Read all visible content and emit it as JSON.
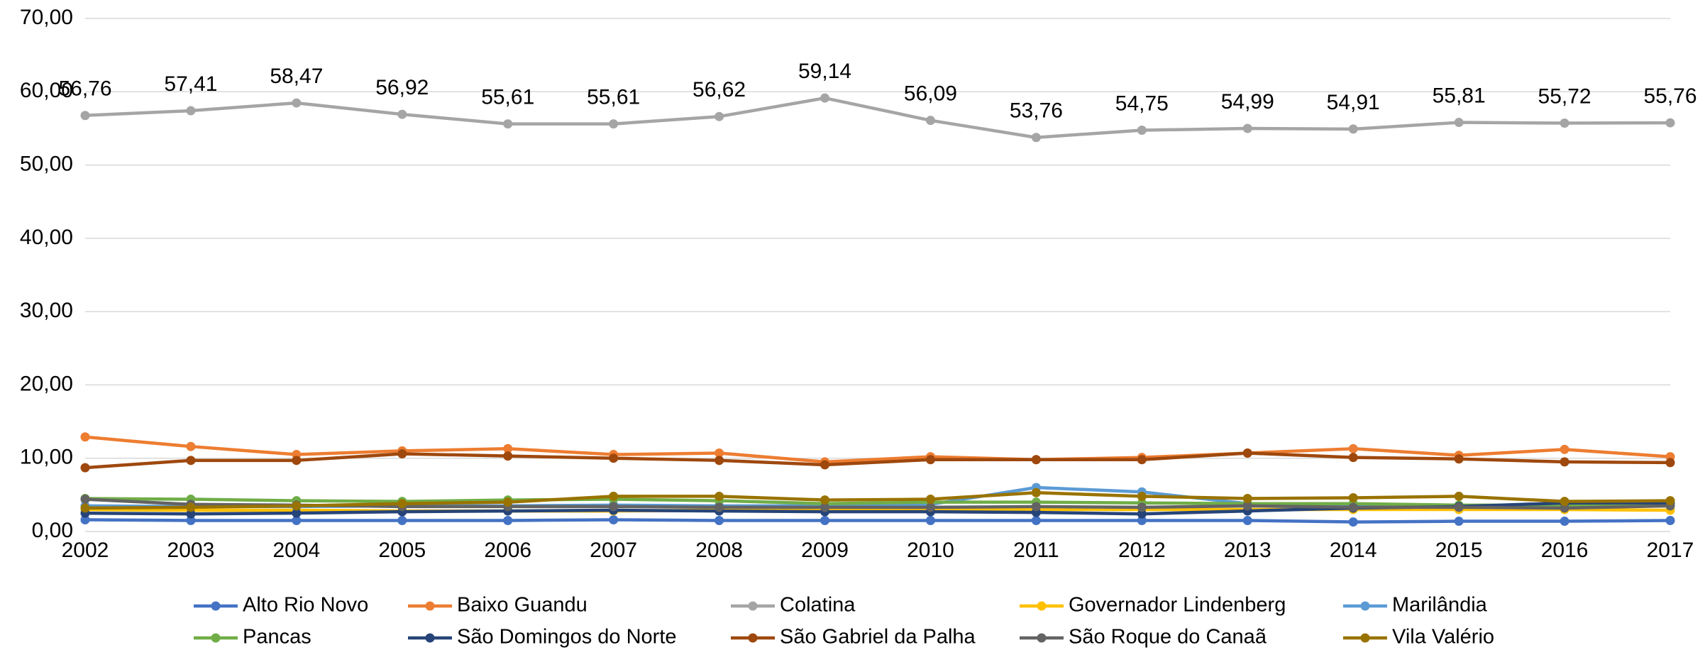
{
  "chart_data": {
    "type": "line",
    "categories": [
      "2002",
      "2003",
      "2004",
      "2005",
      "2006",
      "2007",
      "2008",
      "2009",
      "2010",
      "2011",
      "2012",
      "2013",
      "2014",
      "2015",
      "2016",
      "2017"
    ],
    "ylim": [
      0,
      70
    ],
    "yticks": [
      {
        "value": 0,
        "label": "0,00"
      },
      {
        "value": 10,
        "label": "10,00"
      },
      {
        "value": 20,
        "label": "20,00"
      },
      {
        "value": 30,
        "label": "30,00"
      },
      {
        "value": 40,
        "label": "40,00"
      },
      {
        "value": 50,
        "label": "50,00"
      },
      {
        "value": 60,
        "label": "60,00"
      },
      {
        "value": 70,
        "label": "70,00"
      }
    ],
    "grid": true,
    "legend": "bottom",
    "series": [
      {
        "name": "Alto Rio Novo",
        "color": "#4472c4",
        "values": [
          1.6,
          1.5,
          1.5,
          1.5,
          1.5,
          1.6,
          1.5,
          1.5,
          1.5,
          1.5,
          1.5,
          1.5,
          1.3,
          1.4,
          1.4,
          1.5
        ]
      },
      {
        "name": "Baixo Guandu",
        "color": "#ed7d31",
        "values": [
          12.9,
          11.6,
          10.5,
          11.0,
          11.3,
          10.5,
          10.7,
          9.5,
          10.2,
          9.8,
          10.1,
          10.7,
          11.3,
          10.4,
          11.2,
          10.2
        ]
      },
      {
        "name": "Colatina",
        "color": "#a5a5a5",
        "values": [
          56.76,
          57.41,
          58.47,
          56.92,
          55.61,
          55.61,
          56.62,
          59.14,
          56.09,
          53.76,
          54.75,
          54.99,
          54.91,
          55.81,
          55.72,
          55.76
        ],
        "value_labels": [
          "56,76",
          "57,41",
          "58,47",
          "56,92",
          "55,61",
          "55,61",
          "56,62",
          "59,14",
          "56,09",
          "53,76",
          "54,75",
          "54,99",
          "54,91",
          "55,81",
          "55,72",
          "55,76"
        ]
      },
      {
        "name": "Governador Lindenberg",
        "color": "#ffc000",
        "values": [
          3.0,
          2.9,
          2.9,
          2.8,
          2.8,
          2.8,
          2.9,
          2.9,
          2.9,
          3.0,
          3.0,
          3.0,
          3.0,
          3.0,
          3.0,
          2.9
        ]
      },
      {
        "name": "Marilândia",
        "color": "#5b9bd5",
        "values": [
          3.5,
          3.4,
          3.4,
          3.5,
          3.5,
          3.6,
          3.5,
          3.5,
          3.7,
          6.0,
          5.4,
          3.8,
          3.6,
          3.5,
          3.6,
          3.7
        ]
      },
      {
        "name": "Pancas",
        "color": "#70ad47",
        "values": [
          4.5,
          4.4,
          4.2,
          4.1,
          4.3,
          4.4,
          4.2,
          3.8,
          4.0,
          4.0,
          3.9,
          3.8,
          3.8,
          3.6,
          3.6,
          3.8
        ]
      },
      {
        "name": "São Domingos do Norte",
        "color": "#264478",
        "values": [
          2.5,
          2.4,
          2.5,
          2.7,
          2.8,
          2.9,
          2.8,
          2.7,
          2.7,
          2.6,
          2.4,
          2.8,
          3.2,
          3.4,
          3.9,
          3.9
        ]
      },
      {
        "name": "São Gabriel da Palha",
        "color": "#9e480e",
        "values": [
          8.7,
          9.7,
          9.7,
          10.6,
          10.3,
          10.0,
          9.7,
          9.1,
          9.8,
          9.8,
          9.8,
          10.7,
          10.1,
          9.9,
          9.5,
          9.4
        ]
      },
      {
        "name": "São Roque do Canaã",
        "color": "#636363",
        "values": [
          4.4,
          3.7,
          3.6,
          3.4,
          3.4,
          3.4,
          3.3,
          3.3,
          3.3,
          3.4,
          3.3,
          3.5,
          3.3,
          3.3,
          3.2,
          3.5
        ]
      },
      {
        "name": "Vila Valério",
        "color": "#997300",
        "values": [
          3.2,
          3.3,
          3.5,
          3.8,
          4.0,
          4.8,
          4.8,
          4.3,
          4.4,
          5.3,
          4.8,
          4.5,
          4.6,
          4.8,
          4.1,
          4.2
        ]
      }
    ]
  }
}
